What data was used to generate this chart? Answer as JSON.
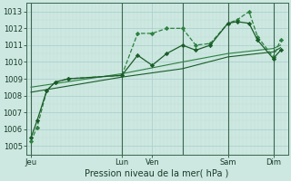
{
  "background_color": "#cce8e0",
  "grid_color": "#aacccc",
  "grid_color_minor": "#c0ddd8",
  "line_color_dark": "#1a5c28",
  "line_color_mid": "#2d8040",
  "title": "Pression niveau de la mer( hPa )",
  "ylim": [
    1004.5,
    1013.5
  ],
  "yticks": [
    1005,
    1006,
    1007,
    1008,
    1009,
    1010,
    1011,
    1012,
    1013
  ],
  "vline_x": [
    0.0,
    0.375,
    0.625,
    0.8125,
    1.0
  ],
  "xtick_positions": [
    0.0,
    0.375,
    0.5,
    0.625,
    0.8125,
    1.0
  ],
  "xtick_labels": [
    "Jeu",
    "Lun",
    "Ven",
    "Sam",
    "Dim",
    ""
  ],
  "series1_x": [
    0.0,
    0.025,
    0.065,
    0.1,
    0.155,
    0.375,
    0.44,
    0.5,
    0.56,
    0.625,
    0.68,
    0.74,
    0.8125,
    0.85,
    0.9,
    0.935,
    1.0,
    1.03
  ],
  "series1_y": [
    1005.3,
    1006.1,
    1008.3,
    1008.8,
    1009.0,
    1009.2,
    1011.7,
    1011.7,
    1012.0,
    1012.0,
    1011.0,
    1011.1,
    1012.3,
    1012.5,
    1013.0,
    1011.5,
    1010.3,
    1011.3
  ],
  "series2_x": [
    0.0,
    0.025,
    0.065,
    0.1,
    0.155,
    0.375,
    0.44,
    0.5,
    0.56,
    0.625,
    0.68,
    0.74,
    0.8125,
    0.85,
    0.9,
    0.935,
    1.0,
    1.03
  ],
  "series2_y": [
    1005.5,
    1006.5,
    1008.3,
    1008.8,
    1009.0,
    1009.2,
    1010.4,
    1009.8,
    1010.5,
    1011.0,
    1010.7,
    1011.0,
    1012.3,
    1012.4,
    1012.3,
    1011.3,
    1010.2,
    1010.7
  ],
  "series3_x": [
    0.0,
    0.375,
    0.625,
    0.8125,
    1.0,
    1.03
  ],
  "series3_y": [
    1008.5,
    1009.3,
    1010.0,
    1010.5,
    1010.8,
    1011.0
  ],
  "series4_x": [
    0.0,
    0.375,
    0.625,
    0.8125,
    1.0,
    1.03
  ],
  "series4_y": [
    1008.2,
    1009.1,
    1009.6,
    1010.3,
    1010.6,
    1010.85
  ],
  "title_fontsize": 7,
  "tick_fontsize": 6
}
